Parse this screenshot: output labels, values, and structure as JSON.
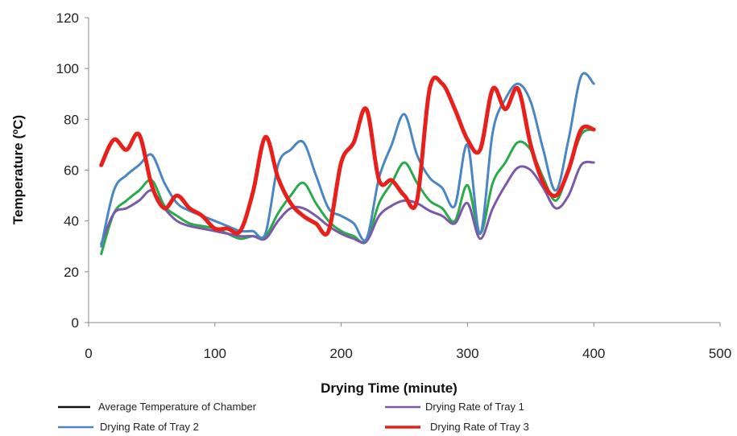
{
  "chart_data": {
    "type": "line",
    "xlabel": "Drying  Time (minute)",
    "ylabel": "Temperature (ºC)",
    "xlim": [
      0,
      500
    ],
    "ylim": [
      0,
      120
    ],
    "xticks": [
      "0",
      "100",
      "200",
      "300",
      "400",
      "500"
    ],
    "yticks": [
      "0",
      "20",
      "40",
      "60",
      "80",
      "100",
      "120"
    ],
    "grid": false,
    "legend_position": "bottom",
    "legend": [
      {
        "label": "Average Temperature of Chamber",
        "color": "#111111"
      },
      {
        "label": "Drying Rate of Tray  1",
        "color": "#7a5aa8"
      },
      {
        "label": "Drying Rate of  Tray 2",
        "color": "#4a86c4"
      },
      {
        "label": "Drying Rate of Tray  3",
        "color": "#e8201c"
      }
    ],
    "series": [
      {
        "name": "Average Temperature of Chamber",
        "color": "#2aaa4a",
        "x": [
          10,
          20,
          30,
          40,
          50,
          60,
          70,
          80,
          90,
          100,
          110,
          120,
          130,
          140,
          150,
          160,
          170,
          180,
          190,
          200,
          210,
          220,
          230,
          240,
          250,
          260,
          270,
          280,
          290,
          300,
          310,
          320,
          330,
          340,
          350,
          360,
          370,
          380,
          390,
          400
        ],
        "y": [
          27,
          43,
          48,
          52,
          56,
          46,
          42,
          39,
          38,
          37,
          35,
          33,
          34,
          34,
          43,
          50,
          55,
          47,
          40,
          36,
          34,
          32,
          47,
          55,
          63,
          55,
          48,
          45,
          40,
          54,
          35,
          55,
          63,
          71,
          68,
          57,
          48,
          60,
          74,
          76
        ]
      },
      {
        "name": "Drying Rate of Tray  1",
        "color": "#7a5aa8",
        "x": [
          10,
          20,
          30,
          40,
          50,
          60,
          70,
          80,
          90,
          100,
          110,
          120,
          130,
          140,
          150,
          160,
          170,
          180,
          190,
          200,
          210,
          220,
          230,
          240,
          250,
          260,
          270,
          280,
          290,
          300,
          310,
          320,
          330,
          340,
          350,
          360,
          370,
          380,
          390,
          400
        ],
        "y": [
          31,
          43,
          45,
          48,
          52,
          45,
          40,
          38,
          37,
          36,
          35,
          34,
          34,
          33,
          40,
          45,
          45,
          42,
          38,
          35,
          33,
          32,
          42,
          46,
          48,
          47,
          44,
          42,
          39,
          47,
          33,
          45,
          54,
          61,
          60,
          53,
          45,
          50,
          62,
          63
        ]
      },
      {
        "name": "Drying Rate of  Tray 2",
        "color": "#4a86c4",
        "x": [
          10,
          20,
          30,
          40,
          50,
          60,
          70,
          80,
          90,
          100,
          110,
          120,
          130,
          140,
          150,
          160,
          170,
          180,
          190,
          200,
          210,
          220,
          230,
          240,
          250,
          260,
          270,
          280,
          290,
          300,
          310,
          320,
          330,
          340,
          350,
          360,
          370,
          380,
          390,
          400
        ],
        "y": [
          30,
          52,
          58,
          62,
          66,
          55,
          47,
          44,
          42,
          40,
          38,
          36,
          36,
          35,
          62,
          68,
          71,
          58,
          45,
          42,
          39,
          33,
          57,
          70,
          82,
          66,
          57,
          53,
          46,
          70,
          35,
          75,
          88,
          94,
          87,
          68,
          52,
          72,
          97,
          94
        ]
      },
      {
        "name": "Drying Rate of Tray  3",
        "color": "#e8201c",
        "x": [
          10,
          20,
          30,
          40,
          50,
          60,
          70,
          80,
          90,
          100,
          110,
          120,
          130,
          140,
          150,
          160,
          170,
          180,
          190,
          200,
          210,
          220,
          230,
          240,
          250,
          260,
          270,
          280,
          290,
          300,
          310,
          320,
          330,
          340,
          350,
          360,
          370,
          380,
          390,
          400
        ],
        "y": [
          62,
          72,
          68,
          74,
          54,
          45,
          50,
          45,
          42,
          37,
          37,
          36,
          51,
          73,
          57,
          47,
          42,
          39,
          36,
          63,
          71,
          84,
          56,
          56,
          50,
          48,
          92,
          94,
          84,
          72,
          68,
          92,
          84,
          92,
          70,
          55,
          50,
          60,
          76,
          76
        ]
      }
    ]
  }
}
